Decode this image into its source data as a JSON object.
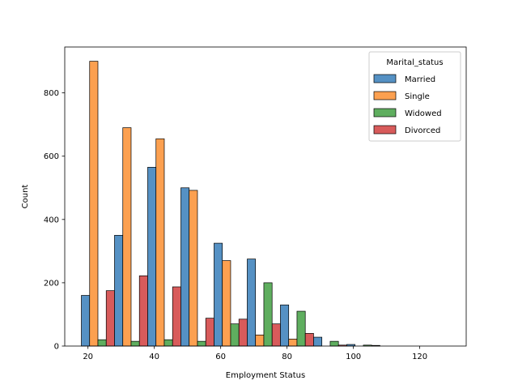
{
  "chart_data": {
    "type": "bar",
    "xlabel": "Employment Status",
    "ylabel": "Count",
    "xlim": [
      13,
      134
    ],
    "ylim": [
      0,
      945
    ],
    "xticks": [
      20,
      40,
      60,
      80,
      100,
      120
    ],
    "yticks": [
      0,
      200,
      400,
      600,
      800
    ],
    "grid": false,
    "bin_starts": [
      18,
      28,
      38,
      48,
      58,
      68,
      78,
      88,
      98
    ],
    "bin_width": 10,
    "legend": {
      "title": "Marital_status",
      "placement": "top-right"
    },
    "series": [
      {
        "name": "Married",
        "color": "#5591c4",
        "values": [
          160,
          350,
          565,
          500,
          325,
          275,
          130,
          28,
          5
        ]
      },
      {
        "name": "Single",
        "color": "#fca050",
        "values": [
          900,
          690,
          655,
          492,
          270,
          35,
          22,
          0,
          0
        ]
      },
      {
        "name": "Widowed",
        "color": "#5fae5f",
        "values": [
          20,
          15,
          20,
          15,
          70,
          200,
          110,
          15,
          3
        ]
      },
      {
        "name": "Divorced",
        "color": "#d85b5b",
        "values": [
          175,
          222,
          187,
          88,
          85,
          70,
          40,
          3,
          2
        ]
      }
    ]
  }
}
